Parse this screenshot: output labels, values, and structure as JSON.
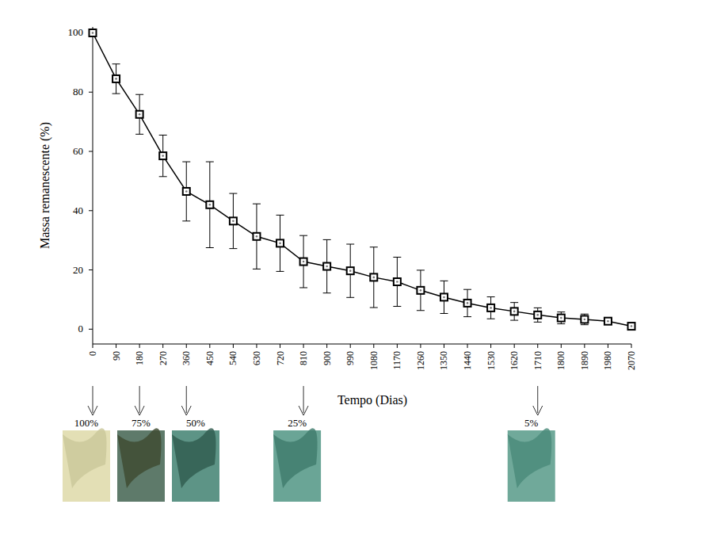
{
  "chart_data": {
    "type": "line",
    "x_label": "Tempo (Dias)",
    "y_label": "Massa remanescente (%)",
    "x": [
      0,
      90,
      180,
      270,
      360,
      450,
      540,
      630,
      720,
      810,
      900,
      990,
      1080,
      1170,
      1260,
      1350,
      1440,
      1530,
      1620,
      1710,
      1800,
      1890,
      1980,
      2070
    ],
    "values": [
      100,
      84.5,
      72.5,
      58.5,
      46.5,
      42,
      36.5,
      31.3,
      29,
      22.8,
      21.2,
      19.7,
      17.5,
      16,
      13.1,
      10.8,
      8.8,
      7.2,
      6,
      4.8,
      3.8,
      3.3,
      2.7,
      1
    ],
    "errors": [
      0,
      5,
      6.7,
      7,
      10,
      14.5,
      9.3,
      11,
      9.5,
      8.8,
      9,
      9,
      10.2,
      8.3,
      6.8,
      5.5,
      4.6,
      3.7,
      3,
      2.4,
      2,
      1.8,
      1,
      0.7
    ],
    "color": "#000000",
    "marker": "square",
    "xlim": [
      0,
      2070
    ],
    "ylim": [
      -5,
      102
    ],
    "xticks": [
      0,
      90,
      180,
      270,
      360,
      450,
      540,
      630,
      720,
      810,
      900,
      990,
      1080,
      1170,
      1260,
      1350,
      1440,
      1530,
      1620,
      1710,
      1800,
      1890,
      1980,
      2070
    ],
    "yticks": [
      0,
      20,
      40,
      60,
      80,
      100
    ],
    "grid": false,
    "annotations": [
      {
        "x": 0,
        "label": "100%"
      },
      {
        "x": 180,
        "label": "75%"
      },
      {
        "x": 360,
        "label": "50%"
      },
      {
        "x": 810,
        "label": "25%"
      },
      {
        "x": 1710,
        "label": "5%"
      }
    ]
  }
}
